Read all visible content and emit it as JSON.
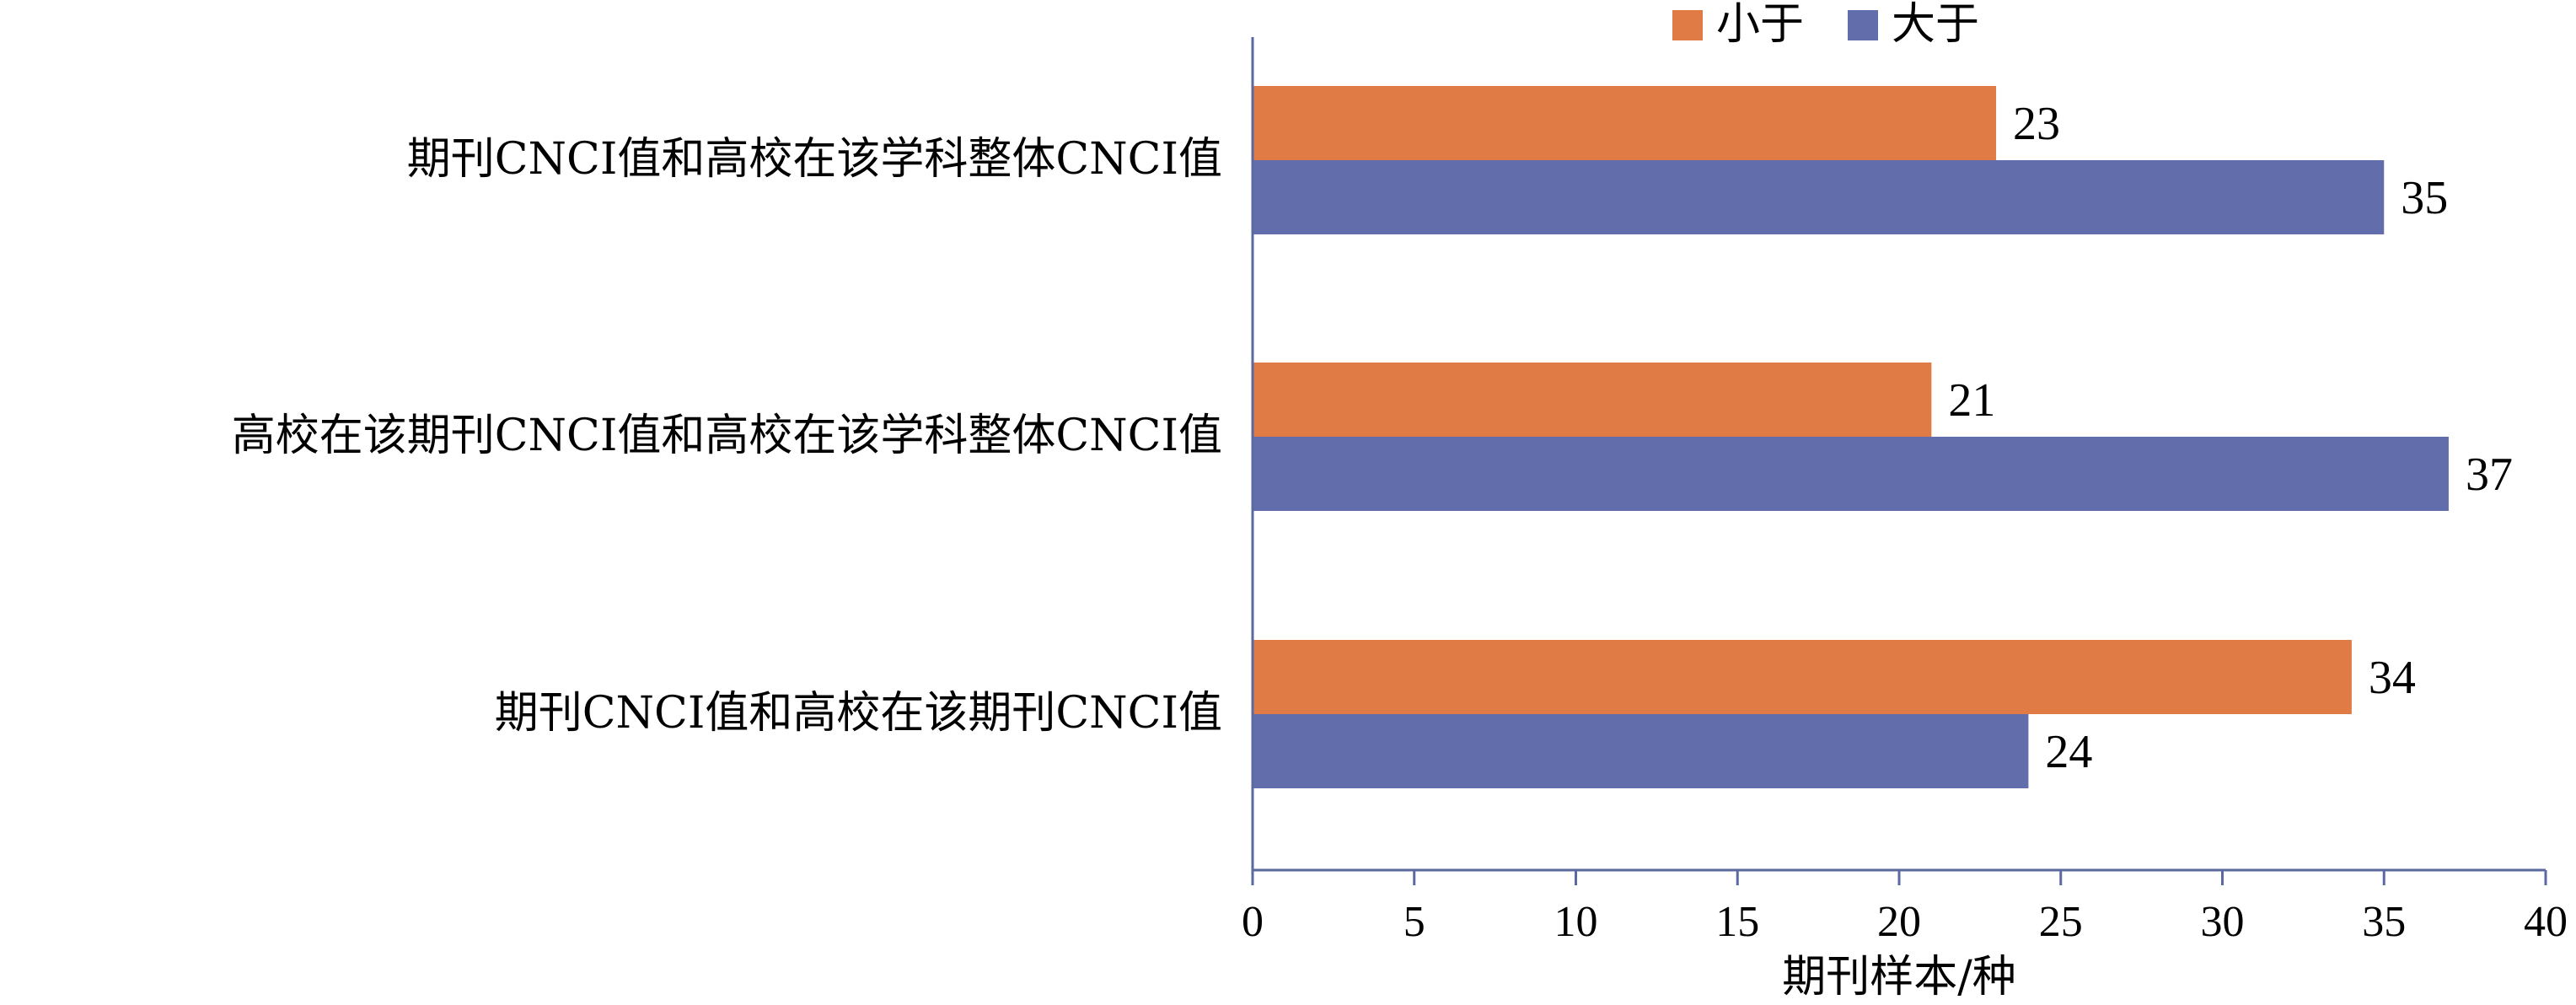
{
  "chart_data": {
    "type": "bar",
    "orientation": "horizontal",
    "categories": [
      "期刊CNCI值和高校在该学科整体CNCI值",
      "高校在该期刊CNCI值和高校在该学科整体CNCI值",
      "期刊CNCI值和高校在该期刊CNCI值"
    ],
    "series": [
      {
        "name": "小于",
        "color": "#E07B45",
        "values": [
          23,
          21,
          34
        ]
      },
      {
        "name": "大于",
        "color": "#626EAB",
        "values": [
          35,
          37,
          24
        ]
      }
    ],
    "xlabel": "期刊样本/种",
    "ylabel": "",
    "xlim": [
      0,
      40
    ],
    "xticks": [
      0,
      5,
      10,
      15,
      20,
      25,
      30,
      35,
      40
    ],
    "grid": false,
    "legend_position": "top-center"
  }
}
